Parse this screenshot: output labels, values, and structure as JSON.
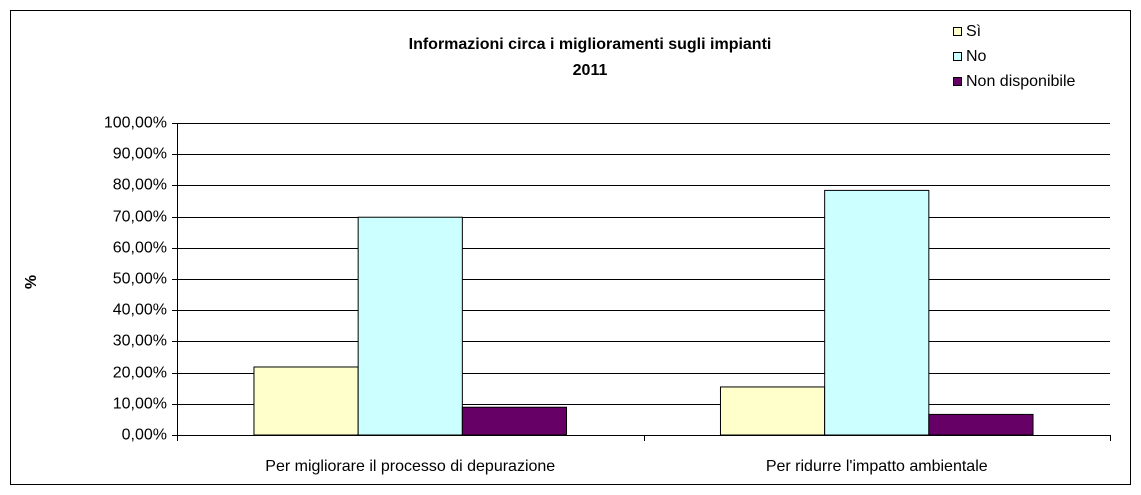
{
  "chart_data": {
    "type": "bar",
    "title": "Informazioni circa i miglioramenti sugli impianti",
    "subtitle": "2011",
    "y_label": "%",
    "categories": [
      "Per migliorare il processo di depurazione",
      "Per ridurre l'impatto ambientale"
    ],
    "series": [
      {
        "name": "Sì",
        "color": "#ffffcc",
        "values": [
          21.8,
          15.4
        ]
      },
      {
        "name": "No",
        "color": "#ccffff",
        "values": [
          69.8,
          78.4
        ]
      },
      {
        "name": "Non disponibile",
        "color": "#660066",
        "values": [
          8.9,
          6.6
        ]
      }
    ],
    "ylim": [
      0,
      100
    ],
    "yticks": [
      {
        "value": 0,
        "label": "0,00%"
      },
      {
        "value": 10,
        "label": "10,00%"
      },
      {
        "value": 20,
        "label": "20,00%"
      },
      {
        "value": 30,
        "label": "30,00%"
      },
      {
        "value": 40,
        "label": "40,00%"
      },
      {
        "value": 50,
        "label": "50,00%"
      },
      {
        "value": 60,
        "label": "60,00%"
      },
      {
        "value": 70,
        "label": "70,00%"
      },
      {
        "value": 80,
        "label": "80,00%"
      },
      {
        "value": 90,
        "label": "90,00%"
      },
      {
        "value": 100,
        "label": "100,00%"
      }
    ],
    "grid": true,
    "legend": "top-right"
  }
}
